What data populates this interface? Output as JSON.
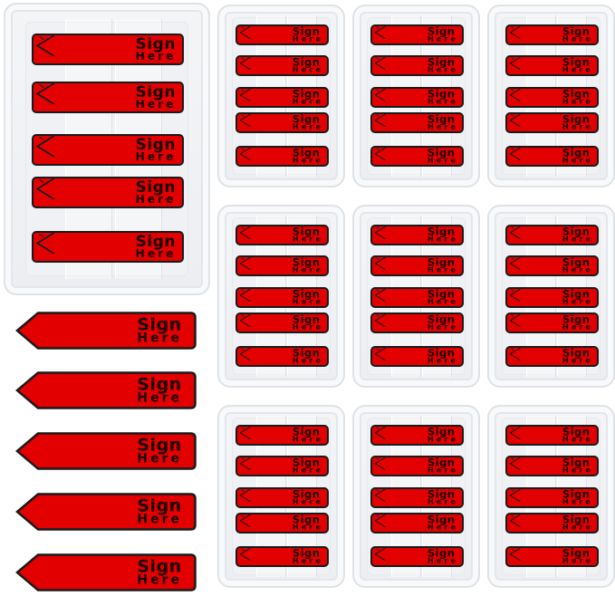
{
  "product": {
    "flag_text_line1": "Sign",
    "flag_text_line2": "Here"
  },
  "colors": {
    "flag_red": "#e20000",
    "flag_outline": "#1a1a1a",
    "tray_plastic": "#eceef1",
    "background": "#ffffff"
  }
}
